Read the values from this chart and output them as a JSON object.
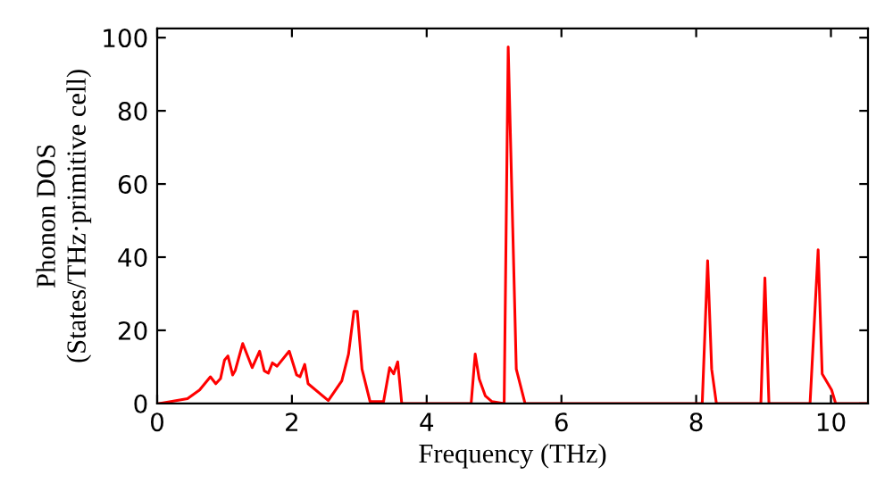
{
  "chart_data": {
    "type": "line",
    "xlabel": "Frequency (THz)",
    "ylabel": "Phonon DOS\n(States/THz·primitive cell)",
    "xlim": [
      0,
      10.55
    ],
    "ylim": [
      0,
      102.5
    ],
    "xticks": [
      0,
      2,
      4,
      6,
      8,
      10
    ],
    "yticks": [
      0,
      20,
      40,
      60,
      80,
      100
    ],
    "grid": false,
    "legend": false,
    "marker": "none",
    "line_style": "solid",
    "series": [
      {
        "color": "#ff0000",
        "x": [
          0.03,
          0.45,
          0.63,
          0.79,
          0.87,
          0.94,
          1.0,
          1.05,
          1.12,
          1.16,
          1.27,
          1.41,
          1.52,
          1.59,
          1.65,
          1.71,
          1.78,
          1.96,
          2.07,
          2.12,
          2.19,
          2.24,
          2.54,
          2.74,
          2.84,
          2.92,
          2.97,
          3.04,
          3.16,
          3.36,
          3.45,
          3.51,
          3.57,
          3.63,
          4.66,
          4.72,
          4.78,
          4.87,
          4.97,
          5.15,
          5.21,
          5.33,
          5.46,
          8.09,
          8.17,
          8.23,
          8.3,
          8.96,
          9.02,
          9.08,
          9.69,
          9.81,
          9.87,
          10.01,
          10.07,
          10.55
        ],
        "values": [
          0,
          1.3,
          3.7,
          7.3,
          5.4,
          6.8,
          11.9,
          13,
          7.8,
          9.1,
          16.4,
          9.8,
          14.3,
          8.9,
          8.3,
          11.1,
          10.2,
          14.3,
          7.8,
          7.3,
          10.7,
          5.4,
          0.8,
          6.2,
          13.5,
          25.2,
          25.2,
          9.4,
          0.5,
          0.5,
          9.8,
          8.1,
          11.4,
          0,
          0,
          13.5,
          6.7,
          2.1,
          0.5,
          0,
          97.5,
          9.4,
          0,
          0,
          39,
          9.4,
          0,
          0,
          34.3,
          0,
          0,
          42,
          8.1,
          3.7,
          0,
          0
        ]
      }
    ]
  }
}
